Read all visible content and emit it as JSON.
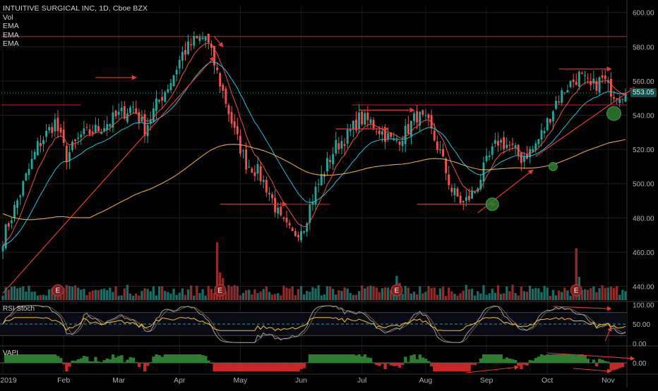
{
  "header": {
    "title": "INTUITIVE SURGICAL INC, 1D, Cboe BZX",
    "studies": [
      "Vol",
      "EMA",
      "EMA",
      "EMA"
    ]
  },
  "last_price_label": "553.05",
  "panes": {
    "rsi_label": "RSI Stoch",
    "vapi_label": "VAPI"
  },
  "colors": {
    "background": "#000000",
    "up": "#26a69a",
    "down": "#ef5350",
    "ema_fast": "#ef5350",
    "ema_mid": "#26c6da",
    "ema_slow": "#ffb74d",
    "horizontal_lines": "#b71c1c",
    "trend_arrows": "#e53935",
    "highlight_circles": "#2e7d32",
    "vapi_positive": "#2e7d32",
    "vapi_negative": "#c62828",
    "last_price_line": "#26a69a"
  },
  "chart_data": [
    {
      "type": "candlestick",
      "title": "INTUITIVE SURGICAL INC, 1D, Cboe BZX",
      "x_ticks": [
        "2019",
        "Feb",
        "Mar",
        "Apr",
        "May",
        "Jun",
        "Jul",
        "Aug",
        "Sep",
        "Oct",
        "Nov"
      ],
      "y_ticks": [
        440,
        460,
        480,
        500,
        520,
        540,
        560,
        580,
        600
      ],
      "ylim": [
        432,
        604
      ],
      "last_price": 553.05,
      "close_path": [
        [
          0,
          468
        ],
        [
          5,
          490
        ],
        [
          12,
          522
        ],
        [
          18,
          536
        ],
        [
          22,
          516
        ],
        [
          27,
          528
        ],
        [
          33,
          532
        ],
        [
          40,
          540
        ],
        [
          45,
          545
        ],
        [
          49,
          532
        ],
        [
          53,
          546
        ],
        [
          58,
          560
        ],
        [
          62,
          576
        ],
        [
          66,
          583
        ],
        [
          70,
          586
        ],
        [
          73,
          570
        ],
        [
          77,
          548
        ],
        [
          80,
          530
        ],
        [
          84,
          512
        ],
        [
          88,
          507
        ],
        [
          92,
          495
        ],
        [
          96,
          478
        ],
        [
          100,
          470
        ],
        [
          104,
          476
        ],
        [
          107,
          492
        ],
        [
          111,
          508
        ],
        [
          115,
          522
        ],
        [
          119,
          528
        ],
        [
          123,
          538
        ],
        [
          127,
          536
        ],
        [
          131,
          530
        ],
        [
          135,
          524
        ],
        [
          139,
          530
        ],
        [
          143,
          540
        ],
        [
          147,
          534
        ],
        [
          151,
          518
        ],
        [
          155,
          496
        ],
        [
          159,
          488
        ],
        [
          163,
          496
        ],
        [
          167,
          512
        ],
        [
          171,
          525
        ],
        [
          175,
          522
        ],
        [
          179,
          515
        ],
        [
          183,
          520
        ],
        [
          187,
          532
        ],
        [
          191,
          548
        ],
        [
          195,
          557
        ],
        [
          199,
          563
        ],
        [
          203,
          556
        ],
        [
          207,
          561
        ],
        [
          211,
          553
        ]
      ],
      "emas": [
        {
          "name": "EMA",
          "period_hint": "fast"
        },
        {
          "name": "EMA",
          "period_hint": "mid"
        },
        {
          "name": "EMA",
          "period_hint": "slow"
        }
      ],
      "horizontal_levels": [
        {
          "start": 0,
          "end": 216,
          "value": 586
        },
        {
          "start": 0,
          "end": 27,
          "value": 546
        },
        {
          "start": 121,
          "end": 216,
          "value": 546
        },
        {
          "start": 95,
          "end": 113,
          "value": 488
        }
      ],
      "trend_arrows": [
        {
          "from": [
            0,
            436
          ],
          "to": [
            73,
            574
          ]
        },
        {
          "from": [
            32,
            562
          ],
          "to": [
            46,
            562
          ]
        },
        {
          "from": [
            73,
            586
          ],
          "to": [
            76,
            580
          ]
        },
        {
          "from": [
            75,
            488
          ],
          "to": [
            98,
            488
          ]
        },
        {
          "from": [
            115,
            532
          ],
          "to": [
            133,
            532
          ]
        },
        {
          "from": [
            123,
            543
          ],
          "to": [
            142,
            543
          ]
        },
        {
          "from": [
            143,
            488
          ],
          "to": [
            170,
            488
          ]
        },
        {
          "from": [
            164,
            483
          ],
          "to": [
            183,
            508
          ]
        },
        {
          "from": [
            184,
            516
          ],
          "to": [
            218,
            556
          ]
        },
        {
          "from": [
            192,
            567
          ],
          "to": [
            210,
            567
          ]
        }
      ],
      "highlight_circles": [
        [
          169,
          488
        ],
        [
          190,
          510
        ],
        [
          211,
          541
        ]
      ],
      "earnings_markers": [
        19,
        75,
        136,
        198
      ]
    },
    {
      "type": "bar",
      "title": "Vol",
      "role": "volume"
    },
    {
      "type": "line",
      "title": "RSI Stoch",
      "y_ticks": [
        0.0,
        50.0,
        100.0
      ],
      "ylim": [
        -5,
        105
      ],
      "midline": 50
    },
    {
      "type": "area",
      "title": "VAPI",
      "y_ticks": [
        0.0
      ],
      "baseline": 0
    }
  ]
}
